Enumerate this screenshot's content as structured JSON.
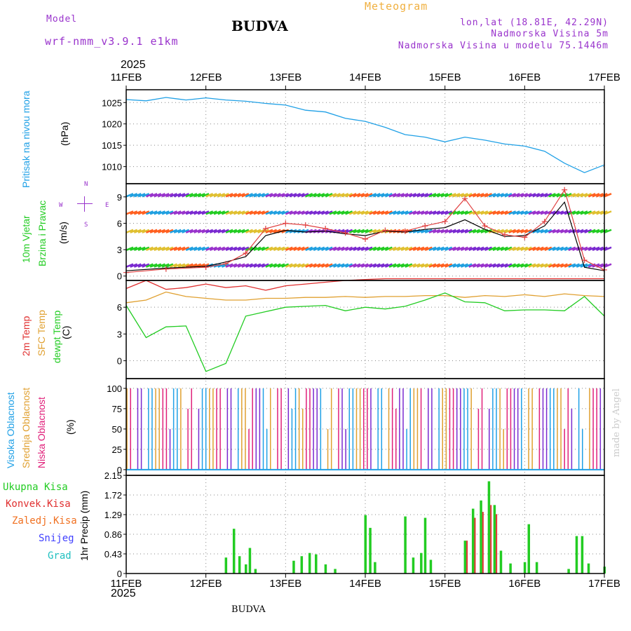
{
  "header": {
    "model_label": "Model",
    "model_name": "wrf-nmm_v3.9.1  e1km",
    "station": "BUDVA",
    "meteogram": "Meteogram",
    "lonlat": "lon,lat (18.81E, 42.29N)",
    "altitude": "Nadmorska Visina 5m",
    "model_altitude": "Nadmorska Visina u modelu 75.1446m",
    "year": "2025",
    "footer_station": "BUDVA",
    "credit": "made by Angel"
  },
  "colors": {
    "pressure": "#1fa0e6",
    "wind_label": "#22cc22",
    "temp2m": "#e03030",
    "sfc_temp": "#e0a030",
    "dewpoint": "#22cc22",
    "cloud_high": "#1fa0e6",
    "cloud_mid": "#e0a030",
    "cloud_low": "#e0207a",
    "precip_total": "#22cc22",
    "precip_conv": "#e03030",
    "precip_frozen": "#f07020",
    "snow": "#4040ff",
    "grad": "#20c0c0",
    "header_purple": "#9933cc"
  },
  "panels": {
    "pressure": {
      "labels": [
        "Pritisak na nivou mora",
        "(hPa)"
      ]
    },
    "wind": {
      "labels": [
        "10m Vjetar",
        "Brzina i Pravac",
        "(m/s)"
      ],
      "compass": {
        "n": "N",
        "w": "W",
        "e": "E",
        "s": "S"
      }
    },
    "temp": {
      "labels": [
        "2m Temp",
        "SFC Temp",
        "dewpt Temp",
        "(C)"
      ]
    },
    "cloud": {
      "labels": [
        "Visoka Oblacnost",
        "Srednja Oblacnost",
        "Niska Oblacnost",
        "(%)"
      ]
    },
    "precip": {
      "legend": [
        "Ukupna Kisa",
        "Konvek.Kisa",
        "Zaledj.Kisa",
        "Snijeg",
        "Grad"
      ],
      "ylabel": "1hr Precip (mm)"
    }
  },
  "chart_data": [
    {
      "type": "line",
      "title": "Pritisak na nivou mora",
      "ylabel": "(hPa)",
      "x_ticks": [
        "11FEB",
        "12FEB",
        "13FEB",
        "14FEB",
        "15FEB",
        "16FEB",
        "17FEB"
      ],
      "ylim": [
        1006,
        1028
      ],
      "y_ticks": [
        1010,
        1015,
        1020,
        1025
      ],
      "x_day": [
        0,
        0.25,
        0.5,
        0.75,
        1.0,
        1.25,
        1.5,
        1.75,
        2.0,
        2.25,
        2.5,
        2.75,
        3.0,
        3.25,
        3.5,
        3.75,
        4.0,
        4.25,
        4.5,
        4.75,
        5.0,
        5.25,
        5.5,
        5.75,
        6.0
      ],
      "series": [
        {
          "values": [
            1025.7,
            1025.4,
            1026.2,
            1025.6,
            1026.1,
            1025.6,
            1025.3,
            1024.8,
            1024.4,
            1023.2,
            1022.8,
            1021.3,
            1020.6,
            1019.2,
            1017.5,
            1016.9,
            1015.8,
            1016.9,
            1016.2,
            1015.3,
            1014.8,
            1013.6,
            1010.8,
            1008.6,
            1010.4
          ]
        }
      ]
    },
    {
      "type": "line",
      "title": "10m Vjetar Brzina i Pravac",
      "ylabel": "(m/s)",
      "ylim": [
        -0.5,
        10.5
      ],
      "y_ticks": [
        0,
        3,
        6,
        9
      ],
      "x_day": [
        0,
        0.5,
        1.0,
        1.25,
        1.5,
        1.75,
        2.0,
        2.25,
        2.5,
        2.75,
        3.0,
        3.25,
        3.5,
        3.75,
        4.0,
        4.25,
        4.5,
        4.75,
        5.0,
        5.25,
        5.5,
        5.75,
        6.0
      ],
      "series": [
        {
          "values": [
            0.6,
            0.9,
            1.1,
            1.6,
            2.2,
            4.6,
            5.2,
            5.0,
            5.1,
            4.8,
            4.6,
            5.1,
            5.0,
            5.3,
            5.5,
            6.4,
            5.3,
            4.5,
            4.6,
            5.7,
            8.4,
            1.0,
            0.6
          ]
        },
        {
          "values": [
            0.4,
            0.8,
            1.0,
            1.4,
            2.6,
            5.4,
            6.0,
            5.8,
            5.4,
            4.9,
            4.2,
            5.2,
            5.1,
            5.7,
            6.2,
            8.8,
            5.7,
            4.7,
            4.4,
            6.2,
            9.8,
            1.8,
            0.7
          ]
        }
      ]
    },
    {
      "type": "line",
      "title": "2m Temp / SFC Temp / dewpt Temp",
      "ylabel": "(C)",
      "ylim": [
        -2,
        9
      ],
      "y_ticks": [
        0,
        3,
        6
      ],
      "x_day": [
        0,
        0.25,
        0.5,
        0.75,
        1.0,
        1.25,
        1.5,
        1.75,
        2.0,
        2.25,
        2.5,
        2.75,
        3.0,
        3.25,
        3.5,
        3.75,
        4.0,
        4.25,
        4.5,
        4.75,
        5.0,
        5.25,
        5.5,
        5.75,
        6.0
      ],
      "series": [
        {
          "name": "2m Temp",
          "values": [
            8.1,
            9.0,
            8.0,
            8.2,
            8.6,
            8.2,
            8.4,
            7.9,
            8.4,
            8.6,
            8.8,
            9.0,
            9.1,
            9.2,
            9.2,
            9.2,
            9.2,
            9.2,
            9.2,
            9.2,
            9.2,
            9.2,
            9.2,
            9.2,
            9.2
          ]
        },
        {
          "name": "SFC Temp",
          "values": [
            6.5,
            6.8,
            7.7,
            7.2,
            7.0,
            6.8,
            6.8,
            7.0,
            7.0,
            7.1,
            7.1,
            7.2,
            7.1,
            7.2,
            7.2,
            7.3,
            7.3,
            7.1,
            7.3,
            7.2,
            7.4,
            7.2,
            7.5,
            7.3,
            7.2
          ]
        },
        {
          "name": "dewpt Temp",
          "values": [
            6.2,
            2.6,
            3.8,
            3.9,
            -1.2,
            -0.3,
            5.0,
            5.5,
            6.0,
            6.1,
            6.2,
            5.6,
            6.0,
            5.8,
            6.1,
            6.8,
            7.6,
            6.6,
            6.5,
            5.6,
            5.7,
            5.7,
            5.6,
            7.2,
            5.0
          ]
        }
      ]
    },
    {
      "type": "bar",
      "title": "Visoka / Srednja / Niska Oblacnost",
      "ylabel": "(%)",
      "ylim": [
        0,
        100
      ],
      "y_ticks": [
        0,
        25,
        50,
        75,
        100
      ]
    },
    {
      "type": "bar",
      "title": "1hr Precip",
      "ylabel": "1hr Precip (mm)",
      "ylim": [
        0,
        2.15
      ],
      "y_ticks": [
        0,
        0.43,
        0.86,
        1.29,
        1.72,
        2.15
      ],
      "y_tick_labels": [
        "0",
        "0.43",
        "0.86",
        "1.29",
        "1.72",
        "2.15"
      ],
      "x_day": [
        1.25,
        1.35,
        1.42,
        1.5,
        1.55,
        1.62,
        2.1,
        2.2,
        2.3,
        2.38,
        2.5,
        2.62,
        3.0,
        3.06,
        3.12,
        3.5,
        3.6,
        3.7,
        3.75,
        3.82,
        4.25,
        4.35,
        4.45,
        4.55,
        4.62,
        4.7,
        4.82,
        5.0,
        5.05,
        5.15,
        5.55,
        5.65,
        5.72,
        5.8,
        6.0
      ],
      "series": [
        {
          "name": "Ukupna Kisa",
          "values": [
            0.35,
            0.98,
            0.38,
            0.2,
            0.56,
            0.1,
            0.28,
            0.38,
            0.45,
            0.42,
            0.2,
            0.1,
            1.28,
            1.0,
            0.25,
            1.25,
            0.35,
            0.45,
            1.22,
            0.3,
            0.72,
            1.42,
            1.6,
            2.02,
            1.5,
            0.5,
            0.22,
            0.25,
            1.08,
            0.25,
            0.1,
            0.82,
            0.82,
            0.22,
            0.15
          ]
        },
        {
          "name": "Konvek.Kisa",
          "values": [
            0,
            0,
            0,
            0,
            0,
            0,
            0,
            0,
            0,
            0,
            0,
            0,
            0,
            0,
            0,
            0,
            0,
            0,
            0,
            0,
            0.72,
            1.22,
            1.35,
            1.5,
            1.3,
            0,
            0,
            0,
            0,
            0,
            0,
            0,
            0,
            0,
            0
          ]
        }
      ]
    }
  ]
}
